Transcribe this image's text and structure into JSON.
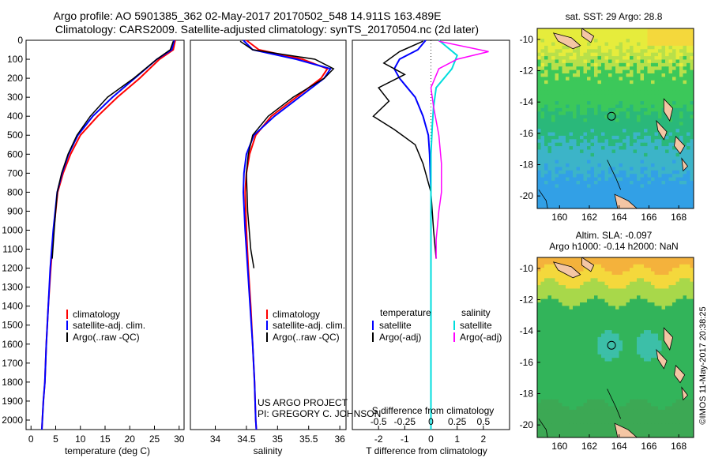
{
  "header": {
    "line1": "Argo profile: AO 5901385_362 02-May-2017 20170502_548 14.911S 163.489E",
    "line2": "Climatology: CARS2009. Satellite-adjusted climatology: synTS_20170504.nc (2d later)"
  },
  "credits": {
    "project": "US ARGO PROJECT",
    "pi": "PI: GREGORY C. JOHNSON",
    "imos": "©IMOS 11-May-2017 20:38:25"
  },
  "colors": {
    "climatology": "#ff0000",
    "satellite": "#0000ff",
    "argo": "#000000",
    "salinity_sat": "#00dddd",
    "salinity_argo": "#ff00ff"
  },
  "chart_data": [
    {
      "id": "temperature",
      "type": "line",
      "xlabel": "temperature (deg C)",
      "xlim": [
        -1,
        31
      ],
      "xticks": [
        0,
        5,
        10,
        15,
        20,
        25,
        30
      ],
      "ylim": [
        2050,
        0
      ],
      "yticks": [
        0,
        100,
        200,
        300,
        400,
        500,
        600,
        700,
        800,
        900,
        1000,
        1100,
        1200,
        1300,
        1400,
        1500,
        1600,
        1700,
        1800,
        1900,
        2000
      ],
      "legend": [
        "climatology",
        "satellite-adj. clim.",
        "Argo(..raw -QC)"
      ],
      "series": [
        {
          "name": "climatology",
          "color": "#ff0000",
          "x": [
            29.2,
            28.8,
            26.0,
            22.0,
            17.5,
            13.5,
            10.0,
            8.0,
            6.5,
            5.4,
            4.6,
            4.0,
            3.5,
            3.1,
            2.8,
            2.5,
            2.3,
            2.2
          ],
          "y": [
            0,
            50,
            100,
            200,
            300,
            400,
            500,
            600,
            700,
            800,
            1000,
            1200,
            1400,
            1600,
            1800,
            1900,
            2000,
            2050
          ]
        },
        {
          "name": "satellite-adj. clim.",
          "color": "#0000ff",
          "x": [
            29.0,
            28.5,
            25.5,
            21.0,
            16.5,
            12.5,
            9.5,
            7.6,
            6.3,
            5.3,
            4.5,
            3.9,
            3.5,
            3.1,
            2.8,
            2.5,
            2.3,
            2.2
          ],
          "y": [
            0,
            50,
            100,
            200,
            300,
            400,
            500,
            600,
            700,
            800,
            1000,
            1200,
            1400,
            1600,
            1800,
            1900,
            2000,
            2050
          ]
        },
        {
          "name": "Argo(..raw -QC)",
          "color": "#000000",
          "x": [
            28.8,
            28.2,
            25.5,
            20.8,
            15.5,
            12.0,
            9.3,
            7.5,
            6.2,
            5.3,
            4.7,
            4.3
          ],
          "y": [
            5,
            50,
            100,
            200,
            300,
            400,
            500,
            600,
            700,
            800,
            1000,
            1150
          ]
        }
      ]
    },
    {
      "id": "salinity",
      "type": "line",
      "xlabel": "salinity",
      "xlim": [
        33.6,
        36.1
      ],
      "xticks": [
        34,
        34.5,
        35,
        35.5,
        36
      ],
      "ylim": [
        2050,
        0
      ],
      "legend": [
        "climatology",
        "satellite-adj. clim.",
        "Argo(..raw -QC)"
      ],
      "series": [
        {
          "name": "climatology",
          "color": "#ff0000",
          "x": [
            34.5,
            34.7,
            35.4,
            35.8,
            35.7,
            35.3,
            34.9,
            34.65,
            34.55,
            34.5,
            34.48,
            34.5,
            34.53,
            34.57,
            34.6,
            34.63,
            34.65,
            34.66
          ],
          "y": [
            0,
            50,
            100,
            150,
            200,
            300,
            400,
            500,
            600,
            700,
            800,
            1000,
            1200,
            1400,
            1600,
            1800,
            2000,
            2050
          ]
        },
        {
          "name": "satellite-adj. clim.",
          "color": "#0000ff",
          "x": [
            34.45,
            34.6,
            35.3,
            35.85,
            35.75,
            35.35,
            34.95,
            34.62,
            34.5,
            34.46,
            34.45,
            34.48,
            34.52,
            34.56,
            34.6,
            34.63,
            34.65,
            34.66
          ],
          "y": [
            0,
            50,
            100,
            150,
            200,
            300,
            400,
            500,
            600,
            700,
            800,
            1000,
            1200,
            1400,
            1600,
            1800,
            2000,
            2050
          ]
        },
        {
          "name": "Argo(..raw -QC)",
          "color": "#000000",
          "x": [
            34.4,
            34.6,
            35.6,
            35.9,
            35.75,
            35.25,
            34.85,
            34.6,
            34.53,
            34.5,
            34.52,
            34.57,
            34.62
          ],
          "y": [
            5,
            50,
            100,
            150,
            200,
            300,
            400,
            500,
            600,
            700,
            900,
            1100,
            1200
          ]
        }
      ]
    },
    {
      "id": "difference",
      "type": "line",
      "xlabel_top": "S difference from climatology",
      "xlabel": "T difference from climatology",
      "xlim": [
        -3,
        3
      ],
      "xticks": [
        -2,
        -1,
        0,
        1,
        2
      ],
      "xticks_top": [
        -0.5,
        -0.25,
        0,
        0.25,
        0.5
      ],
      "ylim": [
        2050,
        0
      ],
      "legend": {
        "temperature_title": "temperature",
        "salinity_title": "salinity",
        "satellite": "satellite",
        "argo_adj": "Argo(-adj)"
      },
      "series": [
        {
          "name": "temperature satellite",
          "color": "#0000ff",
          "x": [
            -0.2,
            -0.5,
            -1.2,
            -1.4,
            -1.2,
            -0.6,
            -0.3,
            -0.1,
            -0.05,
            0,
            0,
            0
          ],
          "y": [
            0,
            50,
            100,
            150,
            200,
            300,
            400,
            500,
            600,
            800,
            1200,
            2050
          ]
        },
        {
          "name": "temperature Argo(-adj)",
          "color": "#000000",
          "x": [
            -0.3,
            -1.2,
            -1.8,
            -1.0,
            -2.0,
            -1.6,
            -2.2,
            -1.4,
            -0.6,
            -0.3,
            0.0,
            0.1,
            0.2
          ],
          "y": [
            5,
            60,
            120,
            180,
            250,
            320,
            400,
            470,
            550,
            650,
            800,
            1000,
            1150
          ]
        },
        {
          "name": "salinity satellite",
          "color": "#00dddd",
          "x": [
            0.3,
            1.0,
            0.8,
            0.2,
            0.1,
            0.05,
            0,
            0,
            0
          ],
          "y": [
            0,
            80,
            150,
            250,
            350,
            450,
            600,
            1000,
            2050
          ]
        },
        {
          "name": "salinity Argo(-adj)",
          "color": "#ff00ff",
          "x": [
            0.3,
            2.2,
            1.0,
            0.3,
            0.0,
            0.1,
            0.3,
            0.4,
            0.4,
            0.3,
            0.2,
            0.2
          ],
          "y": [
            5,
            60,
            100,
            150,
            250,
            350,
            500,
            650,
            800,
            900,
            1050,
            1150
          ]
        }
      ]
    },
    {
      "id": "sst_map",
      "type": "heatmap",
      "title": "sat. SST: 29 Argo: 28.8",
      "xticks": [
        160,
        162,
        164,
        166,
        168
      ],
      "yticks": [
        -10,
        -12,
        -14,
        -16,
        -18,
        -20
      ],
      "xlim": [
        158.5,
        169
      ],
      "ylim": [
        -20.8,
        -9.3
      ],
      "float_position": {
        "lon": 163.489,
        "lat": -14.911
      }
    },
    {
      "id": "sla_map",
      "type": "heatmap",
      "title_line1": "Altim. SLA: -0.097",
      "title_line2": "Argo h1000: -0.14 h2000: NaN",
      "xticks": [
        160,
        162,
        164,
        166,
        168
      ],
      "yticks": [
        -10,
        -12,
        -14,
        -16,
        -18,
        -20
      ],
      "xlim": [
        158.5,
        169
      ],
      "ylim": [
        -20.8,
        -9.3
      ],
      "float_position": {
        "lon": 163.489,
        "lat": -14.911
      }
    }
  ]
}
